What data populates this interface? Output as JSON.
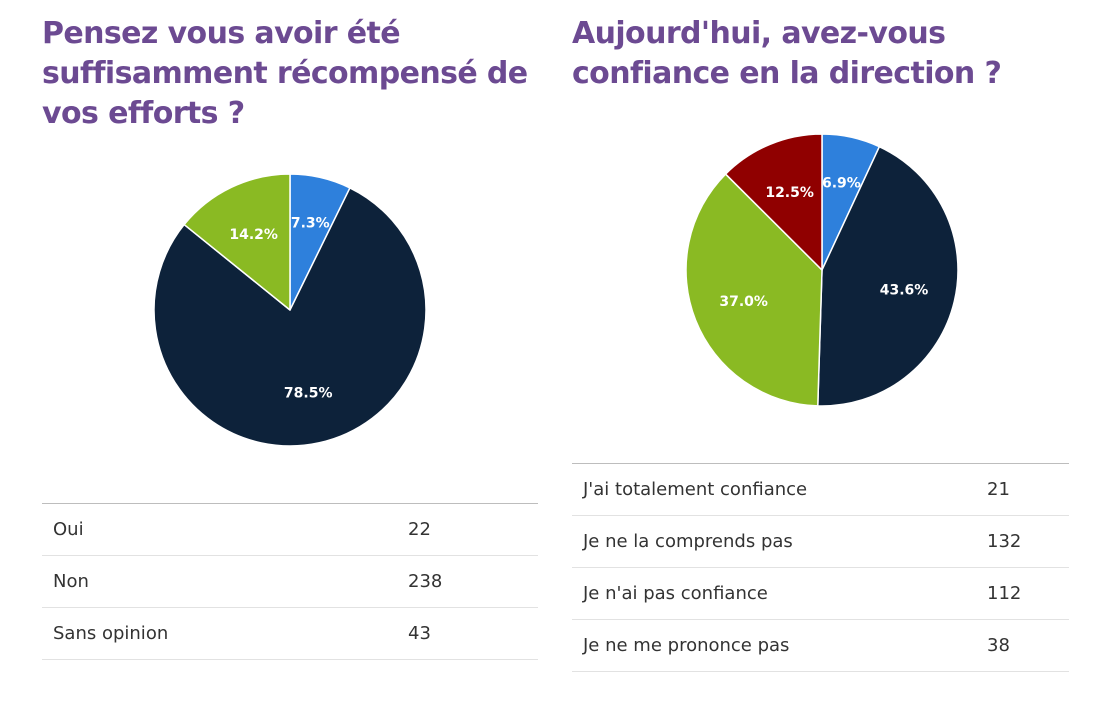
{
  "colors": {
    "title": "#6c4a92",
    "blue": "#2e80dc",
    "navy": "#0d223a",
    "green": "#8aba23",
    "red": "#900000"
  },
  "chart_data": [
    {
      "type": "pie",
      "title": "Pensez vous avoir été suffisamment récompensé de vos efforts ?",
      "categories": [
        "Oui",
        "Non",
        "Sans opinion"
      ],
      "values": [
        22,
        238,
        43
      ],
      "slice_labels": [
        "7.3%",
        "78.5%",
        "14.2%"
      ],
      "slice_colors": [
        "#2e80dc",
        "#0d223a",
        "#8aba23"
      ]
    },
    {
      "type": "pie",
      "title": "Aujourd'hui, avez-vous confiance en la direction ?",
      "categories": [
        "J'ai totalement confiance",
        "Je ne la comprends pas",
        "Je n'ai pas confiance",
        "Je ne me prononce pas"
      ],
      "values": [
        21,
        132,
        112,
        38
      ],
      "slice_labels": [
        "6.9%",
        "43.6%",
        "37.0%",
        "12.5%"
      ],
      "slice_colors": [
        "#2e80dc",
        "#0d223a",
        "#8aba23",
        "#900000"
      ]
    }
  ]
}
